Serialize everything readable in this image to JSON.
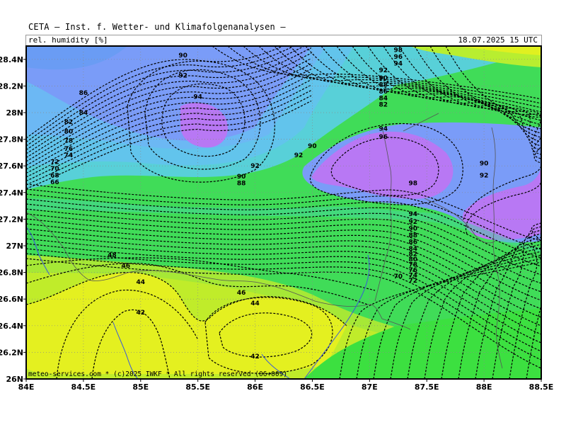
{
  "header": {
    "provider_line": "CETA — Inst. f. Wetter- und Klimafolgenanalysen —",
    "parameter": "rel. humidity [%]",
    "valid_time": "18.07.2025 15 UTC"
  },
  "credit": "meteo-services.com * (c)2025 IWKF * All rights reserved (06+009)",
  "map": {
    "lon_range": [
      84.0,
      88.5
    ],
    "lat_range": [
      26.0,
      28.5
    ],
    "x_ticks": [
      "84E",
      "84.5E",
      "85E",
      "85.5E",
      "86E",
      "86.5E",
      "87E",
      "87.5E",
      "88E",
      "88.5E"
    ],
    "y_ticks": [
      "26N",
      "26.2N",
      "26.4N",
      "26.6N",
      "26.8N",
      "27N",
      "27.2N",
      "27.4N",
      "27.6N",
      "27.8N",
      "28N",
      "28.2N",
      "28.4N"
    ],
    "grid": true,
    "color_scale": [
      {
        "value": 42,
        "color": "#e4f020"
      },
      {
        "value": 50,
        "color": "#b0ea30"
      },
      {
        "value": 60,
        "color": "#5ee040"
      },
      {
        "value": 70,
        "color": "#38e060"
      },
      {
        "value": 78,
        "color": "#48d8b0"
      },
      {
        "value": 84,
        "color": "#60c8e8"
      },
      {
        "value": 90,
        "color": "#7a9cf8"
      },
      {
        "value": 96,
        "color": "#b878f4"
      }
    ],
    "contour_labels": [
      {
        "text": "90",
        "lon": 85.37,
        "lat": 28.43
      },
      {
        "text": "92",
        "lon": 85.37,
        "lat": 28.28
      },
      {
        "text": "94",
        "lon": 85.5,
        "lat": 28.12
      },
      {
        "text": "86",
        "lon": 84.5,
        "lat": 28.15
      },
      {
        "text": "84",
        "lon": 84.5,
        "lat": 28.0
      },
      {
        "text": "82",
        "lon": 84.37,
        "lat": 27.93
      },
      {
        "text": "80",
        "lon": 84.37,
        "lat": 27.86
      },
      {
        "text": "78",
        "lon": 84.37,
        "lat": 27.79
      },
      {
        "text": "76",
        "lon": 84.37,
        "lat": 27.73
      },
      {
        "text": "74",
        "lon": 84.37,
        "lat": 27.68
      },
      {
        "text": "72",
        "lon": 84.25,
        "lat": 27.63
      },
      {
        "text": "70",
        "lon": 84.25,
        "lat": 27.58
      },
      {
        "text": "68",
        "lon": 84.25,
        "lat": 27.53
      },
      {
        "text": "66",
        "lon": 84.25,
        "lat": 27.48
      },
      {
        "text": "92",
        "lon": 86.38,
        "lat": 27.68
      },
      {
        "text": "90",
        "lon": 86.5,
        "lat": 27.75
      },
      {
        "text": "92",
        "lon": 86.0,
        "lat": 27.6
      },
      {
        "text": "90",
        "lon": 85.88,
        "lat": 27.52
      },
      {
        "text": "88",
        "lon": 85.88,
        "lat": 27.47
      },
      {
        "text": "94",
        "lon": 87.12,
        "lat": 27.88
      },
      {
        "text": "96",
        "lon": 87.12,
        "lat": 27.82
      },
      {
        "text": "98",
        "lon": 87.38,
        "lat": 27.47
      },
      {
        "text": "90",
        "lon": 88.0,
        "lat": 27.62
      },
      {
        "text": "92",
        "lon": 88.0,
        "lat": 27.53
      },
      {
        "text": "94",
        "lon": 87.38,
        "lat": 27.24
      },
      {
        "text": "92",
        "lon": 87.38,
        "lat": 27.18
      },
      {
        "text": "90",
        "lon": 87.38,
        "lat": 27.13
      },
      {
        "text": "88",
        "lon": 87.38,
        "lat": 27.08
      },
      {
        "text": "86",
        "lon": 87.38,
        "lat": 27.03
      },
      {
        "text": "84",
        "lon": 87.38,
        "lat": 26.98
      },
      {
        "text": "82",
        "lon": 87.38,
        "lat": 26.94
      },
      {
        "text": "80",
        "lon": 87.38,
        "lat": 26.9
      },
      {
        "text": "78",
        "lon": 87.38,
        "lat": 26.86
      },
      {
        "text": "76",
        "lon": 87.38,
        "lat": 26.82
      },
      {
        "text": "74",
        "lon": 87.38,
        "lat": 26.78
      },
      {
        "text": "72",
        "lon": 87.38,
        "lat": 26.74
      },
      {
        "text": "70",
        "lon": 87.25,
        "lat": 26.77
      },
      {
        "text": "98",
        "lon": 87.25,
        "lat": 28.47
      },
      {
        "text": "96",
        "lon": 87.25,
        "lat": 28.42
      },
      {
        "text": "94",
        "lon": 87.25,
        "lat": 28.37
      },
      {
        "text": "92",
        "lon": 87.12,
        "lat": 28.32
      },
      {
        "text": "90",
        "lon": 87.12,
        "lat": 28.26
      },
      {
        "text": "88",
        "lon": 87.12,
        "lat": 28.21
      },
      {
        "text": "86",
        "lon": 87.12,
        "lat": 28.16
      },
      {
        "text": "84",
        "lon": 87.12,
        "lat": 28.11
      },
      {
        "text": "82",
        "lon": 87.12,
        "lat": 28.06
      },
      {
        "text": "48",
        "lon": 84.75,
        "lat": 26.93
      },
      {
        "text": "46",
        "lon": 84.87,
        "lat": 26.85
      },
      {
        "text": "44",
        "lon": 85.0,
        "lat": 26.73
      },
      {
        "text": "46",
        "lon": 85.88,
        "lat": 26.65
      },
      {
        "text": "44",
        "lon": 86.0,
        "lat": 26.57
      },
      {
        "text": "42",
        "lon": 85.0,
        "lat": 26.5
      },
      {
        "text": "42",
        "lon": 86.0,
        "lat": 26.17
      }
    ]
  }
}
